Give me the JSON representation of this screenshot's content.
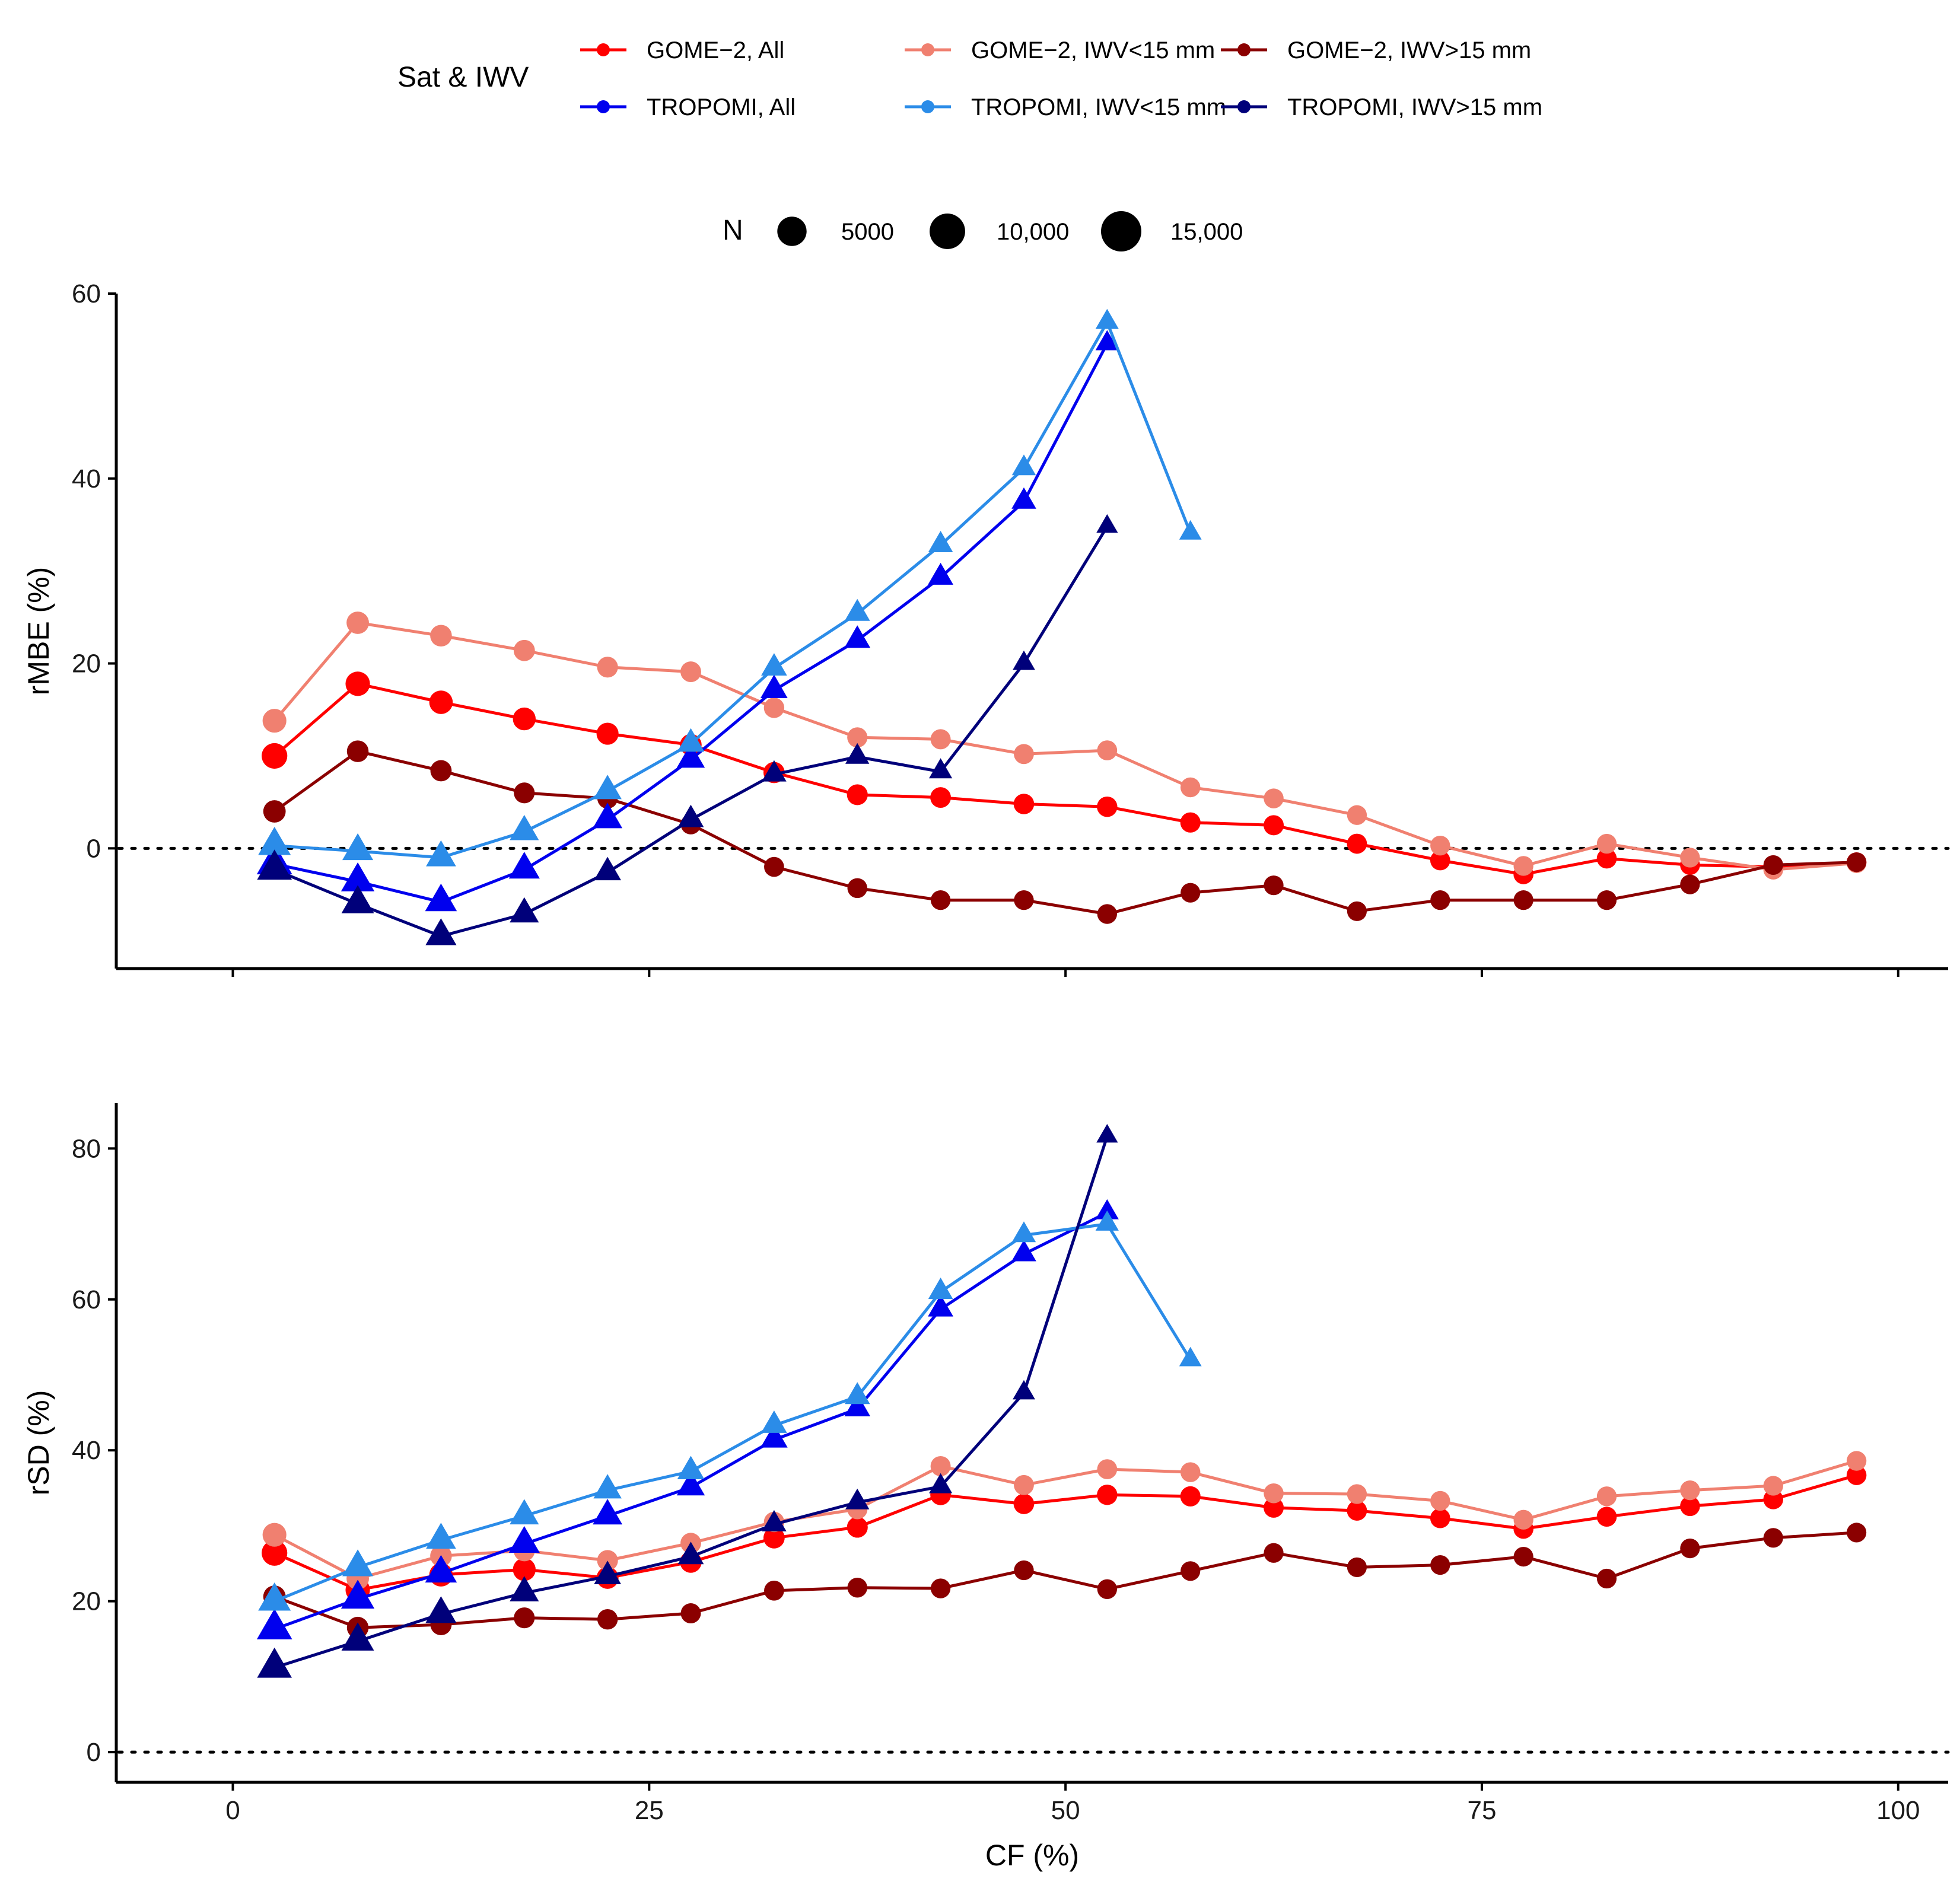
{
  "legend": {
    "color_title": "Sat & IWV",
    "size_title": "N",
    "size_items": [
      {
        "label": "5000",
        "value": 5000
      },
      {
        "label": "10,000",
        "value": 10000
      },
      {
        "label": "15,000",
        "value": 15000
      }
    ]
  },
  "chart_data": [
    {
      "type": "line",
      "panel": "top",
      "xlabel": "",
      "ylabel": "rMBE (%)",
      "xlim": [
        -7,
        103
      ],
      "ylim": [
        -13,
        60
      ],
      "yticks": [
        0,
        20,
        40,
        60
      ],
      "xticks": [
        0,
        25,
        50,
        75,
        100
      ],
      "show_xtick_labels": false,
      "reference_line": 0,
      "series": [
        {
          "name": "GOME−2, All",
          "color": "#ff0000",
          "marker": "circle",
          "x": [
            2.5,
            7.5,
            12.5,
            17.5,
            22.5,
            27.5,
            32.5,
            37.5,
            42.5,
            47.5,
            52.5,
            57.5,
            62.5,
            67.5,
            72.5,
            77.5,
            82.5,
            87.5,
            92.5,
            97.5
          ],
          "y": [
            10.0,
            17.8,
            15.8,
            14.0,
            12.4,
            11.2,
            8.2,
            5.8,
            5.5,
            4.8,
            4.5,
            2.8,
            2.5,
            0.5,
            -1.3,
            -2.8,
            -1.1,
            -1.8,
            -2.0,
            -1.5
          ],
          "n": [
            13000,
            11000,
            9500,
            8500,
            7500,
            7000,
            6500,
            6000,
            5800,
            5600,
            5500,
            5300,
            5200,
            5100,
            5000,
            5000,
            5000,
            4900,
            4900,
            4900
          ]
        },
        {
          "name": "GOME−2, IWV<15 mm",
          "color": "#f08070",
          "marker": "circle",
          "x": [
            2.5,
            7.5,
            12.5,
            17.5,
            22.5,
            27.5,
            32.5,
            37.5,
            42.5,
            47.5,
            52.5,
            57.5,
            62.5,
            67.5,
            72.5,
            77.5,
            82.5,
            87.5,
            92.5,
            97.5
          ],
          "y": [
            13.8,
            24.4,
            23.0,
            21.4,
            19.6,
            19.1,
            15.2,
            12.0,
            11.8,
            10.2,
            10.6,
            6.6,
            5.4,
            3.6,
            0.3,
            -1.9,
            0.5,
            -1.0,
            -2.3,
            -1.6
          ],
          "n": [
            10000,
            8000,
            7000,
            6500,
            6000,
            5800,
            5500,
            5300,
            5200,
            5100,
            5000,
            4900,
            4900,
            4800,
            4800,
            4800,
            4800,
            4800,
            4800,
            4800
          ]
        },
        {
          "name": "GOME−2, IWV>15 mm",
          "color": "#8b0000",
          "marker": "circle",
          "x": [
            2.5,
            7.5,
            12.5,
            17.5,
            22.5,
            27.5,
            32.5,
            37.5,
            42.5,
            47.5,
            52.5,
            57.5,
            62.5,
            67.5,
            72.5,
            77.5,
            82.5,
            87.5,
            92.5,
            97.5
          ],
          "y": [
            4.0,
            10.5,
            8.4,
            6.0,
            5.4,
            2.6,
            -2.0,
            -4.3,
            -5.6,
            -5.6,
            -7.1,
            -4.8,
            -4.0,
            -6.8,
            -5.6,
            -5.6,
            -5.6,
            -3.9,
            -1.8,
            -1.5
          ],
          "n": [
            8000,
            7000,
            6500,
            6000,
            5500,
            5200,
            5000,
            4900,
            4800,
            4800,
            4800,
            4700,
            4700,
            4700,
            4700,
            4700,
            4700,
            4700,
            4700,
            4700
          ]
        },
        {
          "name": "TROPOMI, All",
          "color": "#0000ee",
          "marker": "triangle",
          "x": [
            2.5,
            7.5,
            12.5,
            17.5,
            22.5,
            27.5,
            32.5,
            37.5,
            42.5,
            47.5,
            52.5
          ],
          "y": [
            -1.7,
            -3.6,
            -5.8,
            -2.3,
            3.1,
            9.6,
            17.1,
            22.5,
            29.3,
            37.5,
            54.6
          ],
          "n": [
            16000,
            13000,
            11000,
            10000,
            8500,
            7000,
            6000,
            5000,
            4500,
            4000,
            3000
          ]
        },
        {
          "name": "TROPOMI, IWV<15 mm",
          "color": "#2b8ce8",
          "marker": "triangle",
          "x": [
            2.5,
            7.5,
            12.5,
            17.5,
            22.5,
            27.5,
            32.5,
            37.5,
            42.5,
            47.5,
            52.5,
            57.5
          ],
          "y": [
            0.3,
            -0.3,
            -1.0,
            1.8,
            6.2,
            11.3,
            19.5,
            25.4,
            32.8,
            41.1,
            56.9,
            34.1
          ],
          "n": [
            12000,
            10000,
            9000,
            8000,
            7000,
            6000,
            5000,
            4500,
            4000,
            3500,
            3000,
            2500
          ]
        },
        {
          "name": "TROPOMI, IWV>15 mm",
          "color": "#00007a",
          "marker": "triangle",
          "x": [
            2.5,
            7.5,
            12.5,
            17.5,
            22.5,
            27.5,
            32.5,
            37.5,
            42.5,
            47.5,
            52.5
          ],
          "y": [
            -2.3,
            -6.0,
            -9.5,
            -7.1,
            -2.6,
            3.1,
            8.0,
            9.9,
            8.3,
            20.0,
            34.8
          ],
          "n": [
            15000,
            12000,
            10000,
            8000,
            6000,
            5000,
            4000,
            3500,
            3000,
            2500,
            2000
          ]
        }
      ]
    },
    {
      "type": "line",
      "panel": "bottom",
      "xlabel": "CF (%)",
      "ylabel": "rSD (%)",
      "xlim": [
        -7,
        103
      ],
      "ylim": [
        -4,
        86
      ],
      "yticks": [
        0,
        20,
        40,
        60,
        80
      ],
      "xticks": [
        0,
        25,
        50,
        75,
        100
      ],
      "show_xtick_labels": true,
      "reference_line": 0,
      "series": [
        {
          "name": "GOME−2, All",
          "color": "#ff0000",
          "marker": "circle",
          "x": [
            2.5,
            7.5,
            12.5,
            17.5,
            22.5,
            27.5,
            32.5,
            37.5,
            42.5,
            47.5,
            52.5,
            57.5,
            62.5,
            67.5,
            72.5,
            77.5,
            82.5,
            87.5,
            92.5,
            97.5
          ],
          "y": [
            26.4,
            21.5,
            23.5,
            24.2,
            23.1,
            25.2,
            28.4,
            29.8,
            34.1,
            32.9,
            34.1,
            33.9,
            32.4,
            32.0,
            31.0,
            29.6,
            31.2,
            32.6,
            33.5,
            36.7
          ],
          "n": [
            13000,
            11000,
            9500,
            8500,
            7500,
            7000,
            6500,
            6000,
            5800,
            5600,
            5500,
            5300,
            5200,
            5100,
            5000,
            5000,
            5000,
            4900,
            4900,
            4900
          ]
        },
        {
          "name": "GOME−2, IWV<15 mm",
          "color": "#f08070",
          "marker": "circle",
          "x": [
            2.5,
            7.5,
            12.5,
            17.5,
            22.5,
            27.5,
            32.5,
            37.5,
            42.5,
            47.5,
            52.5,
            57.5,
            62.5,
            67.5,
            72.5,
            77.5,
            82.5,
            87.5,
            92.5,
            97.5
          ],
          "y": [
            28.8,
            23.0,
            26.0,
            26.7,
            25.4,
            27.7,
            30.5,
            32.2,
            37.9,
            35.4,
            37.5,
            37.1,
            34.3,
            34.2,
            33.3,
            30.8,
            33.9,
            34.7,
            35.3,
            38.6
          ],
          "n": [
            10000,
            8000,
            7000,
            6500,
            6000,
            5800,
            5500,
            5300,
            5200,
            5100,
            5000,
            4900,
            4900,
            4800,
            4800,
            4800,
            4800,
            4800,
            4800,
            4800
          ]
        },
        {
          "name": "GOME−2, IWV>15 mm",
          "color": "#8b0000",
          "marker": "circle",
          "x": [
            2.5,
            7.5,
            12.5,
            17.5,
            22.5,
            27.5,
            32.5,
            37.5,
            42.5,
            47.5,
            52.5,
            57.5,
            62.5,
            67.5,
            72.5,
            77.5,
            82.5,
            87.5,
            92.5,
            97.5
          ],
          "y": [
            20.6,
            16.5,
            16.9,
            17.8,
            17.6,
            18.4,
            21.4,
            21.8,
            21.7,
            24.1,
            21.6,
            24.0,
            26.4,
            24.5,
            24.8,
            25.9,
            23.0,
            27.0,
            28.4,
            29.1
          ],
          "n": [
            8000,
            7000,
            6500,
            6000,
            5500,
            5200,
            5000,
            4900,
            4800,
            4800,
            4800,
            4700,
            4700,
            4700,
            4700,
            4700,
            4700,
            4700,
            4700,
            4700
          ]
        },
        {
          "name": "TROPOMI, All",
          "color": "#0000ee",
          "marker": "triangle",
          "x": [
            2.5,
            7.5,
            12.5,
            17.5,
            22.5,
            27.5,
            32.5,
            37.5,
            42.5,
            47.5,
            52.5
          ],
          "y": [
            16.3,
            20.3,
            23.7,
            27.6,
            31.3,
            35.1,
            41.4,
            45.5,
            58.7,
            66.0,
            71.5
          ],
          "n": [
            16000,
            13000,
            11000,
            10000,
            8500,
            7000,
            6000,
            5000,
            4500,
            4000,
            3000
          ]
        },
        {
          "name": "TROPOMI, IWV<15 mm",
          "color": "#2b8ce8",
          "marker": "triangle",
          "x": [
            2.5,
            7.5,
            12.5,
            17.5,
            22.5,
            27.5,
            32.5,
            37.5,
            42.5,
            47.5,
            52.5,
            57.5
          ],
          "y": [
            20.0,
            24.5,
            28.1,
            31.3,
            34.7,
            37.2,
            43.3,
            47.1,
            61.0,
            68.5,
            70.0,
            52.0
          ],
          "n": [
            12000,
            10000,
            9000,
            8000,
            7000,
            6000,
            5000,
            4500,
            4000,
            3500,
            3000,
            2500
          ]
        },
        {
          "name": "TROPOMI, IWV>15 mm",
          "color": "#00007a",
          "marker": "triangle",
          "x": [
            2.5,
            7.5,
            12.5,
            17.5,
            22.5,
            27.5,
            32.5,
            37.5,
            42.5,
            47.5,
            52.5
          ],
          "y": [
            11.2,
            14.7,
            18.3,
            21.1,
            23.3,
            25.9,
            30.2,
            33.1,
            35.2,
            47.6,
            81.6
          ],
          "n": [
            15000,
            12000,
            10000,
            8000,
            6000,
            5000,
            4000,
            3500,
            3000,
            2500,
            2000
          ]
        }
      ]
    }
  ]
}
